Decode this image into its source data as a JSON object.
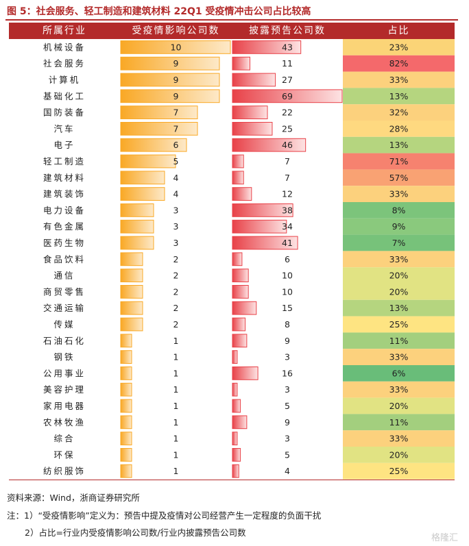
{
  "title": "图 5：社会服务、轻工制造和建筑材料 22Q1 受疫情冲击公司占比较高",
  "header": {
    "col_industry": "所属行业",
    "col_affected": "受疫情影响公司数",
    "col_disclosed": "披露预告公司数",
    "col_ratio": "占比"
  },
  "chart_data": {
    "type": "table",
    "columns": [
      "所属行业",
      "受疫情影响公司数",
      "披露预告公司数",
      "占比"
    ],
    "rows": [
      {
        "industry": "机械设备",
        "affected": 10,
        "disclosed": 43,
        "ratio": "23%",
        "ratio_color": "#fbd477"
      },
      {
        "industry": "社会服务",
        "affected": 9,
        "disclosed": 11,
        "ratio": "82%",
        "ratio_color": "#f4696b"
      },
      {
        "industry": "计算机",
        "affected": 9,
        "disclosed": 27,
        "ratio": "33%",
        "ratio_color": "#fcd17d"
      },
      {
        "industry": "基础化工",
        "affected": 9,
        "disclosed": 69,
        "ratio": "13%",
        "ratio_color": "#b5d57f"
      },
      {
        "industry": "国防装备",
        "affected": 7,
        "disclosed": 22,
        "ratio": "32%",
        "ratio_color": "#fcd17d"
      },
      {
        "industry": "汽车",
        "affected": 7,
        "disclosed": 25,
        "ratio": "28%",
        "ratio_color": "#fed980"
      },
      {
        "industry": "电子",
        "affected": 6,
        "disclosed": 46,
        "ratio": "13%",
        "ratio_color": "#b5d57f"
      },
      {
        "industry": "轻工制造",
        "affected": 5,
        "disclosed": 7,
        "ratio": "71%",
        "ratio_color": "#f6826f"
      },
      {
        "industry": "建筑材料",
        "affected": 4,
        "disclosed": 7,
        "ratio": "57%",
        "ratio_color": "#f9a273"
      },
      {
        "industry": "建筑装饰",
        "affected": 4,
        "disclosed": 12,
        "ratio": "33%",
        "ratio_color": "#fcd17d"
      },
      {
        "industry": "电力设备",
        "affected": 3,
        "disclosed": 38,
        "ratio": "8%",
        "ratio_color": "#7cc47b"
      },
      {
        "industry": "有色金属",
        "affected": 3,
        "disclosed": 34,
        "ratio": "9%",
        "ratio_color": "#8ac97d"
      },
      {
        "industry": "医药生物",
        "affected": 3,
        "disclosed": 41,
        "ratio": "7%",
        "ratio_color": "#77c27a"
      },
      {
        "industry": "食品饮料",
        "affected": 2,
        "disclosed": 6,
        "ratio": "33%",
        "ratio_color": "#fcd17d"
      },
      {
        "industry": "通信",
        "affected": 2,
        "disclosed": 10,
        "ratio": "20%",
        "ratio_color": "#e1e383"
      },
      {
        "industry": "商贸零售",
        "affected": 2,
        "disclosed": 10,
        "ratio": "20%",
        "ratio_color": "#e1e383"
      },
      {
        "industry": "交通运输",
        "affected": 2,
        "disclosed": 15,
        "ratio": "13%",
        "ratio_color": "#b5d57f"
      },
      {
        "industry": "传媒",
        "affected": 2,
        "disclosed": 8,
        "ratio": "25%",
        "ratio_color": "#fee482"
      },
      {
        "industry": "石油石化",
        "affected": 1,
        "disclosed": 9,
        "ratio": "11%",
        "ratio_color": "#a3cf7e"
      },
      {
        "industry": "钢铁",
        "affected": 1,
        "disclosed": 3,
        "ratio": "33%",
        "ratio_color": "#fcd17d"
      },
      {
        "industry": "公用事业",
        "affected": 1,
        "disclosed": 16,
        "ratio": "6%",
        "ratio_color": "#69bd79"
      },
      {
        "industry": "美容护理",
        "affected": 1,
        "disclosed": 3,
        "ratio": "33%",
        "ratio_color": "#fcd17d"
      },
      {
        "industry": "家用电器",
        "affected": 1,
        "disclosed": 5,
        "ratio": "20%",
        "ratio_color": "#e1e383"
      },
      {
        "industry": "农林牧渔",
        "affected": 1,
        "disclosed": 9,
        "ratio": "11%",
        "ratio_color": "#a3cf7e"
      },
      {
        "industry": "综合",
        "affected": 1,
        "disclosed": 3,
        "ratio": "33%",
        "ratio_color": "#fcd17d"
      },
      {
        "industry": "环保",
        "affected": 1,
        "disclosed": 5,
        "ratio": "20%",
        "ratio_color": "#e1e383"
      },
      {
        "industry": "纺织服饰",
        "affected": 1,
        "disclosed": 4,
        "ratio": "25%",
        "ratio_color": "#fee482"
      }
    ],
    "affected_max": 10,
    "disclosed_max": 69,
    "colors": {
      "affected_bar": "#f9a825",
      "affected_bar_light": "#fde9c9",
      "disclosed_bar": "#e84148",
      "disclosed_bar_light": "#fde3e3"
    }
  },
  "footer": {
    "source": "资料来源：Wind，浙商证券研究所",
    "note1": "注：1）“受疫情影响”定义为：预告中提及疫情对公司经营产生一定程度的负面干扰",
    "note2": "2）占比=行业内受疫情影响公司数/行业内披露预告公司数"
  },
  "watermark": "格隆汇"
}
